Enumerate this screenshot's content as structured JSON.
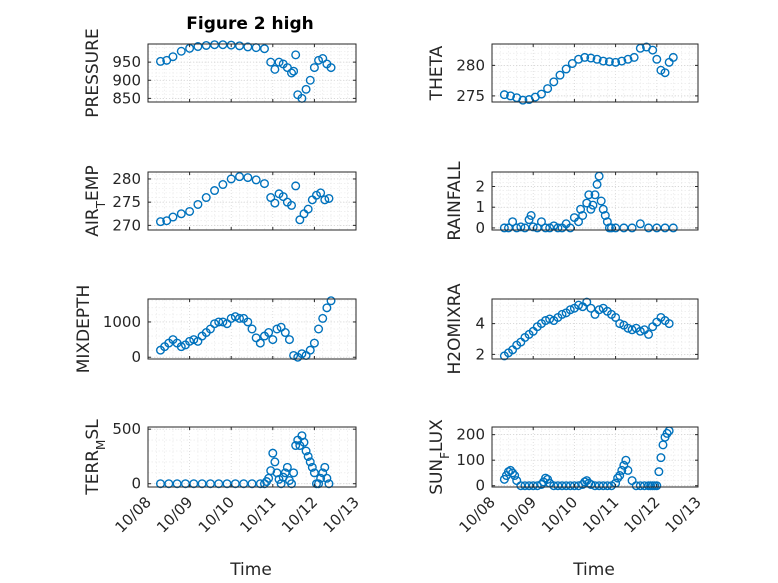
{
  "figure": {
    "title": "Figure 2 high",
    "xlabel": "Time"
  },
  "chart_data": [
    {
      "type": "scatter",
      "ylabel": "PRESSURE",
      "xlim": [
        "10/08",
        "10/13"
      ],
      "ylim": [
        840,
        1000
      ],
      "yticks": [
        850,
        900,
        950
      ],
      "xticks": [
        "10/08",
        "10/09",
        "10/10",
        "10/11",
        "10/12",
        "10/13"
      ],
      "grid": true,
      "marker_color": "#0072BD",
      "x": [
        8.3,
        8.45,
        8.6,
        8.8,
        9.0,
        9.2,
        9.4,
        9.6,
        9.8,
        10.0,
        10.2,
        10.4,
        10.6,
        10.8,
        10.95,
        11.05,
        11.15,
        11.25,
        11.35,
        11.45,
        11.5,
        11.55,
        11.6,
        11.7,
        11.8,
        11.9,
        12.0,
        12.1,
        12.2,
        12.3,
        12.4
      ],
      "y": [
        952,
        955,
        965,
        980,
        988,
        993,
        996,
        998,
        998,
        997,
        995,
        992,
        990,
        987,
        950,
        930,
        950,
        945,
        935,
        920,
        925,
        970,
        860,
        850,
        875,
        900,
        935,
        955,
        960,
        945,
        935
      ]
    },
    {
      "type": "scatter",
      "ylabel": "THETA",
      "xlim": [
        "10/08",
        "10/13"
      ],
      "ylim": [
        274,
        283.5
      ],
      "yticks": [
        275,
        280
      ],
      "xticks": [
        "10/08",
        "10/09",
        "10/10",
        "10/11",
        "10/12",
        "10/13"
      ],
      "grid": true,
      "marker_color": "#0072BD",
      "x": [
        8.3,
        8.45,
        8.6,
        8.75,
        8.9,
        9.05,
        9.2,
        9.35,
        9.5,
        9.65,
        9.8,
        9.95,
        10.1,
        10.25,
        10.4,
        10.55,
        10.7,
        10.85,
        11.0,
        11.15,
        11.3,
        11.45,
        11.6,
        11.75,
        11.9,
        12.0,
        12.1,
        12.2,
        12.3,
        12.4
      ],
      "y": [
        275.2,
        275.0,
        274.7,
        274.3,
        274.4,
        274.8,
        275.3,
        276.2,
        277.3,
        278.4,
        279.4,
        280.3,
        281.0,
        281.3,
        281.2,
        281.0,
        280.7,
        280.6,
        280.5,
        280.7,
        281.0,
        281.3,
        282.8,
        283.0,
        282.5,
        281.0,
        279.2,
        278.8,
        280.5,
        281.3
      ]
    },
    {
      "type": "scatter",
      "ylabel": "AIR_TEMP",
      "xlim": [
        "10/08",
        "10/13"
      ],
      "ylim": [
        269,
        281.5
      ],
      "yticks": [
        270,
        275,
        280
      ],
      "xticks": [
        "10/08",
        "10/09",
        "10/10",
        "10/11",
        "10/12",
        "10/13"
      ],
      "grid": true,
      "marker_color": "#0072BD",
      "x": [
        8.3,
        8.45,
        8.6,
        8.8,
        9.0,
        9.2,
        9.4,
        9.6,
        9.8,
        10.0,
        10.2,
        10.4,
        10.6,
        10.8,
        10.95,
        11.05,
        11.15,
        11.25,
        11.35,
        11.45,
        11.55,
        11.65,
        11.75,
        11.85,
        11.95,
        12.05,
        12.15,
        12.25,
        12.35
      ],
      "y": [
        270.8,
        271.0,
        271.8,
        272.5,
        273.0,
        274.5,
        276.0,
        277.5,
        278.8,
        280.0,
        280.5,
        280.3,
        279.8,
        279.0,
        276.0,
        274.8,
        276.8,
        276.2,
        275.0,
        274.3,
        278.5,
        271.2,
        272.5,
        273.5,
        275.5,
        276.5,
        277.0,
        275.5,
        275.8
      ]
    },
    {
      "type": "scatter",
      "ylabel": "RAINFALL",
      "xlim": [
        "10/08",
        "10/13"
      ],
      "ylim": [
        -0.1,
        2.7
      ],
      "yticks": [
        0,
        1,
        2
      ],
      "xticks": [
        "10/08",
        "10/09",
        "10/10",
        "10/11",
        "10/12",
        "10/13"
      ],
      "grid": true,
      "marker_color": "#0072BD",
      "x": [
        8.3,
        8.4,
        8.5,
        8.6,
        8.7,
        8.8,
        8.9,
        8.95,
        9.0,
        9.1,
        9.2,
        9.3,
        9.4,
        9.5,
        9.6,
        9.7,
        9.8,
        9.9,
        10.0,
        10.1,
        10.15,
        10.2,
        10.3,
        10.35,
        10.4,
        10.45,
        10.5,
        10.55,
        10.6,
        10.65,
        10.7,
        10.75,
        10.8,
        10.85,
        10.9,
        11.0,
        11.2,
        11.4,
        11.6,
        11.8,
        12.0,
        12.2,
        12.4
      ],
      "y": [
        0,
        0,
        0.3,
        0,
        0.05,
        0,
        0.4,
        0.6,
        0.05,
        0,
        0.3,
        0,
        0,
        0.1,
        0,
        0,
        0.2,
        0,
        0.5,
        0.3,
        0.9,
        0.6,
        1.2,
        1.6,
        0.9,
        1.1,
        1.6,
        2.1,
        2.5,
        1.3,
        0.9,
        0.6,
        0.3,
        0,
        0,
        0,
        0,
        0,
        0.2,
        0,
        0,
        0,
        0
      ]
    },
    {
      "type": "scatter",
      "ylabel": "MIXDEPTH",
      "xlim": [
        "10/08",
        "10/13"
      ],
      "ylim": [
        -50,
        1650
      ],
      "yticks": [
        0,
        1000
      ],
      "xticks": [
        "10/08",
        "10/09",
        "10/10",
        "10/11",
        "10/12",
        "10/13"
      ],
      "grid": true,
      "marker_color": "#0072BD",
      "x": [
        8.3,
        8.4,
        8.5,
        8.6,
        8.7,
        8.8,
        8.9,
        9.0,
        9.1,
        9.2,
        9.3,
        9.4,
        9.5,
        9.6,
        9.7,
        9.8,
        9.9,
        10.0,
        10.1,
        10.2,
        10.3,
        10.4,
        10.5,
        10.6,
        10.7,
        10.8,
        10.9,
        11.0,
        11.1,
        11.2,
        11.3,
        11.4,
        11.5,
        11.6,
        11.7,
        11.8,
        11.9,
        12.0,
        12.1,
        12.2,
        12.3,
        12.4
      ],
      "y": [
        200,
        300,
        400,
        500,
        400,
        300,
        350,
        450,
        500,
        450,
        600,
        700,
        800,
        950,
        1000,
        1000,
        950,
        1100,
        1150,
        1100,
        1100,
        1000,
        800,
        550,
        400,
        600,
        700,
        500,
        800,
        850,
        700,
        500,
        50,
        0,
        100,
        50,
        200,
        400,
        800,
        1100,
        1400,
        1600
      ]
    },
    {
      "type": "scatter",
      "ylabel": "H2OMIXRA",
      "xlim": [
        "10/08",
        "10/13"
      ],
      "ylim": [
        1.7,
        5.6
      ],
      "yticks": [
        2,
        4
      ],
      "xticks": [
        "10/08",
        "10/09",
        "10/10",
        "10/11",
        "10/12",
        "10/13"
      ],
      "grid": true,
      "marker_color": "#0072BD",
      "x": [
        8.3,
        8.4,
        8.5,
        8.6,
        8.7,
        8.8,
        8.9,
        9.0,
        9.1,
        9.2,
        9.3,
        9.4,
        9.5,
        9.6,
        9.7,
        9.8,
        9.9,
        10.0,
        10.1,
        10.2,
        10.3,
        10.4,
        10.5,
        10.6,
        10.7,
        10.8,
        10.9,
        11.0,
        11.1,
        11.2,
        11.3,
        11.4,
        11.5,
        11.6,
        11.7,
        11.8,
        11.9,
        12.0,
        12.1,
        12.2,
        12.3
      ],
      "y": [
        1.9,
        2.1,
        2.3,
        2.6,
        2.8,
        3.1,
        3.3,
        3.5,
        3.8,
        4.0,
        4.2,
        4.3,
        4.2,
        4.4,
        4.6,
        4.7,
        4.9,
        5.0,
        5.2,
        5.1,
        5.4,
        5.0,
        4.6,
        4.9,
        5.0,
        4.8,
        4.6,
        4.4,
        4.0,
        3.9,
        3.7,
        3.6,
        3.7,
        3.5,
        3.6,
        3.3,
        3.8,
        4.1,
        4.4,
        4.2,
        4.0
      ]
    },
    {
      "type": "scatter",
      "ylabel": "TERR_MSL",
      "xlim": [
        "10/08",
        "10/13"
      ],
      "ylim": [
        -30,
        520
      ],
      "yticks": [
        0,
        500
      ],
      "xticks": [
        "10/08",
        "10/09",
        "10/10",
        "10/11",
        "10/12",
        "10/13"
      ],
      "grid": true,
      "marker_color": "#0072BD",
      "x": [
        8.3,
        8.5,
        8.7,
        8.9,
        9.1,
        9.3,
        9.5,
        9.7,
        9.9,
        10.1,
        10.3,
        10.5,
        10.7,
        10.8,
        10.85,
        10.9,
        10.95,
        11.0,
        11.05,
        11.1,
        11.15,
        11.2,
        11.25,
        11.3,
        11.35,
        11.4,
        11.45,
        11.5,
        11.55,
        11.6,
        11.65,
        11.7,
        11.75,
        11.8,
        11.85,
        11.9,
        11.95,
        12.0,
        12.05,
        12.1,
        12.15,
        12.2,
        12.25,
        12.3,
        12.35
      ],
      "y": [
        0,
        0,
        0,
        0,
        0,
        0,
        0,
        0,
        0,
        0,
        0,
        0,
        0,
        0,
        20,
        50,
        120,
        280,
        200,
        100,
        40,
        0,
        60,
        100,
        150,
        30,
        0,
        100,
        350,
        400,
        350,
        440,
        380,
        300,
        250,
        200,
        150,
        100,
        0,
        0,
        50,
        100,
        150,
        50,
        0
      ]
    },
    {
      "type": "scatter",
      "ylabel": "SUN_FLUX",
      "xlim": [
        "10/08",
        "10/13"
      ],
      "ylim": [
        -5,
        230
      ],
      "yticks": [
        0,
        100,
        200
      ],
      "xticks": [
        "10/08",
        "10/09",
        "10/10",
        "10/11",
        "10/12",
        "10/13"
      ],
      "grid": true,
      "marker_color": "#0072BD",
      "x": [
        8.3,
        8.35,
        8.4,
        8.45,
        8.5,
        8.55,
        8.6,
        8.7,
        8.8,
        8.9,
        9.0,
        9.1,
        9.2,
        9.25,
        9.3,
        9.35,
        9.4,
        9.5,
        9.6,
        9.7,
        9.8,
        9.9,
        10.0,
        10.1,
        10.2,
        10.25,
        10.3,
        10.35,
        10.4,
        10.5,
        10.6,
        10.7,
        10.8,
        10.9,
        11.0,
        11.05,
        11.1,
        11.15,
        11.2,
        11.25,
        11.3,
        11.4,
        11.5,
        11.6,
        11.7,
        11.8,
        11.85,
        11.9,
        11.95,
        12.0,
        12.05,
        12.1,
        12.15,
        12.2,
        12.25,
        12.3
      ],
      "y": [
        25,
        40,
        55,
        60,
        50,
        40,
        20,
        0,
        0,
        0,
        0,
        0,
        5,
        15,
        30,
        25,
        10,
        0,
        0,
        0,
        0,
        0,
        0,
        0,
        5,
        15,
        20,
        10,
        5,
        0,
        0,
        0,
        0,
        0,
        10,
        30,
        40,
        60,
        80,
        100,
        60,
        20,
        0,
        0,
        0,
        0,
        0,
        0,
        0,
        0,
        55,
        110,
        160,
        190,
        205,
        215
      ]
    }
  ]
}
